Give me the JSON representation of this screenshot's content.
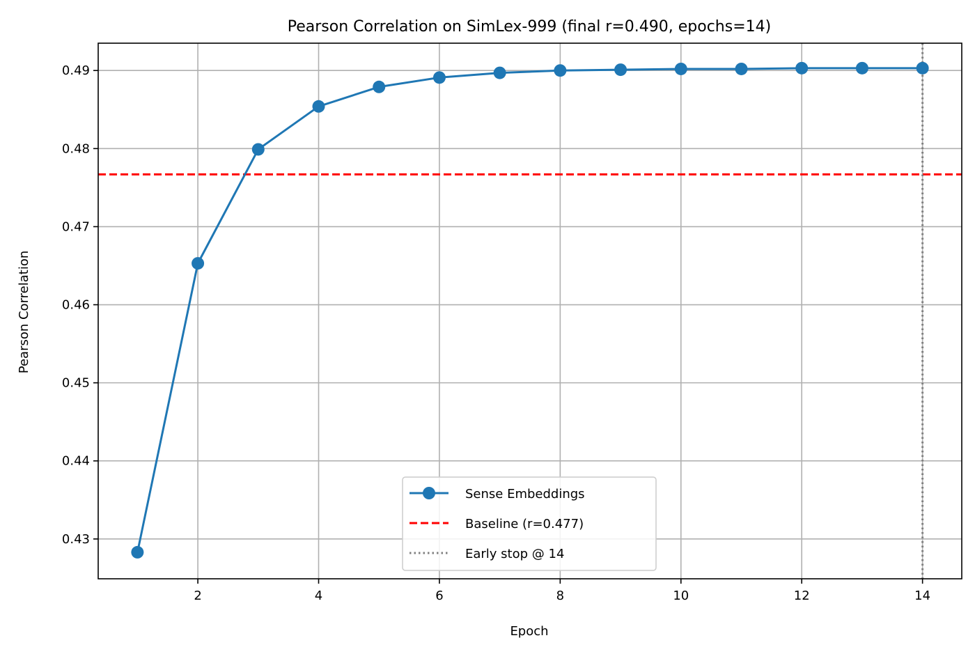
{
  "chart_data": {
    "type": "line",
    "title": "Pearson Correlation on SimLex-999 (final r=0.490, epochs=14)",
    "xlabel": "Epoch",
    "ylabel": "Pearson Correlation",
    "xlim": [
      0.35,
      14.65
    ],
    "ylim": [
      0.4249,
      0.4935
    ],
    "xticks": [
      2,
      4,
      6,
      8,
      10,
      12,
      14
    ],
    "yticks": [
      0.43,
      0.44,
      0.45,
      0.46,
      0.47,
      0.48,
      0.49
    ],
    "ytick_labels": [
      "0.43",
      "0.44",
      "0.45",
      "0.46",
      "0.47",
      "0.48",
      "0.49"
    ],
    "grid": true,
    "legend_position": "lower-center",
    "series": [
      {
        "name": "Sense Embeddings",
        "color": "#1f77b4",
        "style": "solid",
        "marker": "circle",
        "x": [
          1,
          2,
          3,
          4,
          5,
          6,
          7,
          8,
          9,
          10,
          11,
          12,
          13,
          14
        ],
        "y": [
          0.4283,
          0.4653,
          0.4799,
          0.4854,
          0.4879,
          0.4891,
          0.4897,
          0.49,
          0.4901,
          0.4902,
          0.4902,
          0.4903,
          0.4903,
          0.4903
        ]
      }
    ],
    "reference_lines": [
      {
        "name": "Baseline (r=0.477)",
        "orientation": "horizontal",
        "value": 0.4767,
        "color": "#ff0000",
        "style": "dashed"
      },
      {
        "name": "Early stop @ 14",
        "orientation": "vertical",
        "value": 14,
        "color": "#808080",
        "style": "dotted"
      }
    ]
  }
}
